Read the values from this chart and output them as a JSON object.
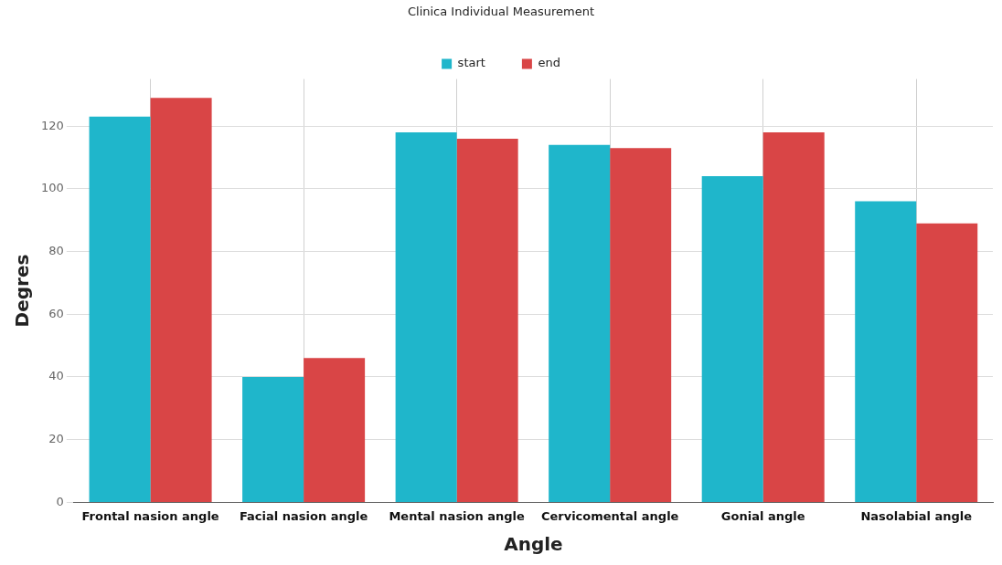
{
  "chart_data": {
    "type": "bar",
    "title": "Clinica Individual Measurement",
    "xlabel": "Angle",
    "ylabel": "Degres",
    "categories": [
      "Frontal nasion angle",
      "Facial nasion angle",
      "Mental nasion angle",
      "Cervicomental angle",
      "Gonial angle",
      "Nasolabial angle"
    ],
    "series": [
      {
        "name": "start",
        "color": "#1fb6cb",
        "values": [
          123,
          40,
          118,
          114,
          104,
          96
        ]
      },
      {
        "name": "end",
        "color": "#d94546",
        "values": [
          129,
          46,
          116,
          113,
          118,
          89
        ]
      }
    ],
    "ylim": [
      0,
      135
    ],
    "yticks": [
      0,
      20,
      40,
      60,
      80,
      100,
      120
    ],
    "grid": true,
    "legend": "top"
  }
}
